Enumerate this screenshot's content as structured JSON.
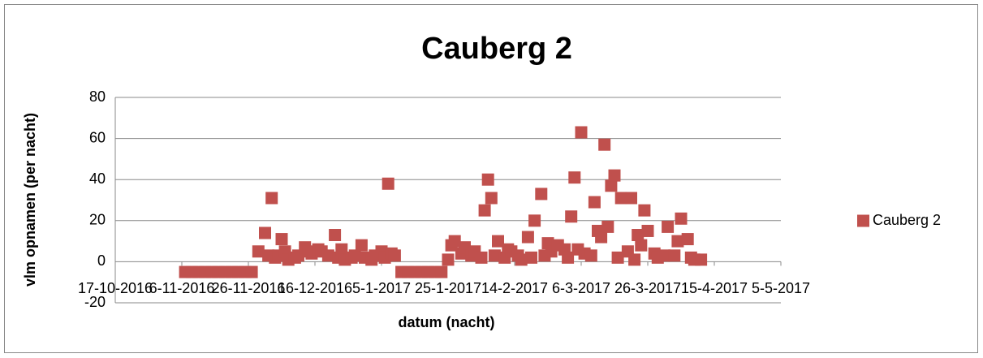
{
  "chart_data": {
    "type": "scatter",
    "title": "Cauberg 2",
    "xlabel": "datum (nacht)",
    "ylabel": "vlm opnamen (per nacht)",
    "xlim": [
      "2016-10-17",
      "2017-05-05"
    ],
    "xticks": [
      {
        "value": "2016-10-17",
        "label": "17-10-2016"
      },
      {
        "value": "2016-11-06",
        "label": "6-11-2016"
      },
      {
        "value": "2016-11-26",
        "label": "26-11-2016"
      },
      {
        "value": "2016-12-16",
        "label": "16-12-2016"
      },
      {
        "value": "2017-01-05",
        "label": "5-1-2017"
      },
      {
        "value": "2017-01-25",
        "label": "25-1-2017"
      },
      {
        "value": "2017-02-14",
        "label": "14-2-2017"
      },
      {
        "value": "2017-03-06",
        "label": "6-3-2017"
      },
      {
        "value": "2017-03-26",
        "label": "26-3-2017"
      },
      {
        "value": "2017-04-15",
        "label": "15-4-2017"
      },
      {
        "value": "2017-05-05",
        "label": "5-5-2017"
      }
    ],
    "ylim": [
      -20,
      80
    ],
    "yticks": [
      -20,
      0,
      20,
      40,
      60,
      80
    ],
    "grid": true,
    "legend": "right",
    "series": [
      {
        "name": "Cauberg 2",
        "color": "#c0504d",
        "x": [
          "2016-11-07",
          "2016-11-09",
          "2016-11-11",
          "2016-11-13",
          "2016-11-15",
          "2016-11-17",
          "2016-11-19",
          "2016-11-21",
          "2016-11-23",
          "2016-11-25",
          "2016-11-27",
          "2016-11-29",
          "2016-12-01",
          "2016-12-02",
          "2016-12-03",
          "2016-12-04",
          "2016-12-05",
          "2016-12-06",
          "2016-12-07",
          "2016-12-08",
          "2016-12-10",
          "2016-12-11",
          "2016-12-13",
          "2016-12-14",
          "2016-12-15",
          "2016-12-17",
          "2016-12-18",
          "2016-12-20",
          "2016-12-22",
          "2016-12-23",
          "2016-12-24",
          "2016-12-25",
          "2016-12-27",
          "2016-12-28",
          "2016-12-30",
          "2016-12-31",
          "2017-01-02",
          "2017-01-03",
          "2017-01-05",
          "2017-01-06",
          "2017-01-07",
          "2017-01-08",
          "2017-01-09",
          "2017-01-11",
          "2017-01-13",
          "2017-01-15",
          "2017-01-17",
          "2017-01-19",
          "2017-01-21",
          "2017-01-23",
          "2017-01-25",
          "2017-01-26",
          "2017-01-27",
          "2017-01-29",
          "2017-01-30",
          "2017-02-01",
          "2017-02-02",
          "2017-02-04",
          "2017-02-05",
          "2017-02-06",
          "2017-02-07",
          "2017-02-08",
          "2017-02-09",
          "2017-02-11",
          "2017-02-12",
          "2017-02-13",
          "2017-02-15",
          "2017-02-16",
          "2017-02-18",
          "2017-02-19",
          "2017-02-20",
          "2017-02-22",
          "2017-02-23",
          "2017-02-24",
          "2017-02-25",
          "2017-02-27",
          "2017-03-01",
          "2017-03-02",
          "2017-03-03",
          "2017-03-04",
          "2017-03-05",
          "2017-03-06",
          "2017-03-07",
          "2017-03-09",
          "2017-03-10",
          "2017-03-11",
          "2017-03-12",
          "2017-03-13",
          "2017-03-14",
          "2017-03-15",
          "2017-03-16",
          "2017-03-17",
          "2017-03-18",
          "2017-03-20",
          "2017-03-21",
          "2017-03-22",
          "2017-03-23",
          "2017-03-24",
          "2017-03-25",
          "2017-03-26",
          "2017-03-28",
          "2017-03-29",
          "2017-03-31",
          "2017-04-01",
          "2017-04-03",
          "2017-04-04",
          "2017-04-05",
          "2017-04-07",
          "2017-04-08",
          "2017-04-09",
          "2017-04-11"
        ],
        "values": [
          -5,
          -5,
          -5,
          -5,
          -5,
          -5,
          -5,
          -5,
          -5,
          -5,
          -5,
          5,
          14,
          3,
          31,
          2,
          3,
          11,
          5,
          1,
          2,
          3,
          7,
          5,
          4,
          6,
          5,
          3,
          13,
          2,
          6,
          1,
          2,
          3,
          8,
          2,
          1,
          3,
          5,
          2,
          38,
          4,
          3,
          -5,
          -5,
          -5,
          -5,
          -5,
          -5,
          -5,
          1,
          8,
          10,
          4,
          7,
          3,
          5,
          2,
          25,
          40,
          31,
          3,
          10,
          2,
          6,
          5,
          3,
          1,
          12,
          2,
          20,
          33,
          3,
          9,
          5,
          8,
          6,
          2,
          22,
          41,
          6,
          63,
          4,
          3,
          29,
          15,
          12,
          57,
          17,
          37,
          42,
          2,
          31,
          5,
          31,
          1,
          13,
          8,
          25,
          15,
          4,
          2,
          3,
          17,
          3,
          10,
          21,
          11,
          2,
          1,
          1
        ]
      }
    ]
  }
}
